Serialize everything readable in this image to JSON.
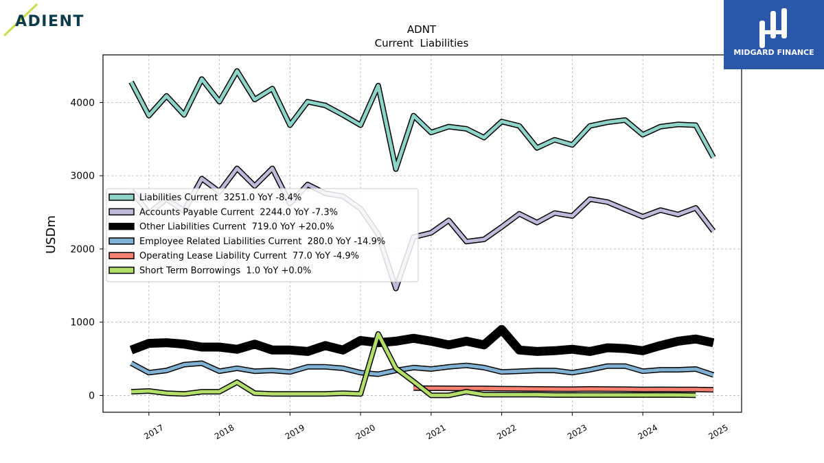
{
  "logos": {
    "left_text": "ADIENT",
    "right_text": "MIDGARD FINANCE",
    "left_color": "#0b3a4a",
    "left_accent": "#c8dc4a",
    "right_bg": "#2b58a8"
  },
  "chart_data": {
    "type": "line",
    "title": "ADNT",
    "subtitle": "Current  Liabilities",
    "xlabel": "",
    "ylabel": "USDm",
    "xlim": [
      2016.35,
      2025.4
    ],
    "ylim": [
      -230,
      4650
    ],
    "x_ticks": [
      2017,
      2018,
      2019,
      2020,
      2021,
      2022,
      2023,
      2024,
      2025
    ],
    "y_ticks": [
      0,
      1000,
      2000,
      3000,
      4000
    ],
    "grid": true,
    "legend_position": "center-left",
    "series": [
      {
        "name": "Liabilities Current  3251.0 YoY -8.4%",
        "color": "#8dd3c7",
        "width": 5,
        "x": [
          2016.75,
          2017.0,
          2017.25,
          2017.5,
          2017.75,
          2018.0,
          2018.25,
          2018.5,
          2018.75,
          2019.0,
          2019.25,
          2019.5,
          2019.75,
          2020.0,
          2020.25,
          2020.5,
          2020.75,
          2021.0,
          2021.25,
          2021.5,
          2021.75,
          2022.0,
          2022.25,
          2022.5,
          2022.75,
          2023.0,
          2023.25,
          2023.5,
          2023.75,
          2024.0,
          2024.25,
          2024.5,
          2024.75,
          2025.0
        ],
        "values": [
          4280,
          3820,
          4090,
          3830,
          4320,
          4010,
          4430,
          4040,
          4190,
          3690,
          4010,
          3960,
          3830,
          3690,
          4230,
          3090,
          3820,
          3590,
          3670,
          3640,
          3520,
          3740,
          3680,
          3380,
          3490,
          3420,
          3680,
          3730,
          3760,
          3560,
          3670,
          3700,
          3690,
          3251
        ]
      },
      {
        "name": "Accounts Payable Current  2244.0 YoY -7.3%",
        "color": "#bebada",
        "width": 5,
        "x": [
          2016.75,
          2017.0,
          2017.25,
          2017.5,
          2017.75,
          2018.0,
          2018.25,
          2018.5,
          2018.75,
          2019.0,
          2019.25,
          2019.5,
          2019.75,
          2020.0,
          2020.25,
          2020.5,
          2020.75,
          2021.0,
          2021.25,
          2021.5,
          2021.75,
          2022.0,
          2022.25,
          2022.5,
          2022.75,
          2023.0,
          2023.25,
          2023.5,
          2023.75,
          2024.0,
          2024.25,
          2024.5,
          2024.75,
          2025.0
        ],
        "values": [
          2800,
          2490,
          2680,
          2520,
          2960,
          2780,
          3100,
          2860,
          3100,
          2620,
          2880,
          2760,
          2720,
          2550,
          2200,
          1460,
          2160,
          2220,
          2390,
          2100,
          2130,
          2300,
          2480,
          2360,
          2490,
          2450,
          2680,
          2640,
          2540,
          2440,
          2530,
          2470,
          2560,
          2244
        ]
      },
      {
        "name": "Other Liabilities Current  719.0 YoY +20.0%",
        "color": "#000000",
        "width": 10,
        "x": [
          2016.75,
          2017.0,
          2017.25,
          2017.5,
          2017.75,
          2018.0,
          2018.25,
          2018.5,
          2018.75,
          2019.0,
          2019.25,
          2019.5,
          2019.75,
          2020.0,
          2020.25,
          2020.5,
          2020.75,
          2021.0,
          2021.25,
          2021.5,
          2021.75,
          2022.0,
          2022.25,
          2022.5,
          2022.75,
          2023.0,
          2023.25,
          2023.5,
          2023.75,
          2024.0,
          2024.25,
          2024.5,
          2024.75,
          2025.0
        ],
        "values": [
          620,
          710,
          720,
          700,
          660,
          660,
          630,
          700,
          620,
          620,
          600,
          680,
          620,
          750,
          720,
          740,
          780,
          740,
          690,
          740,
          690,
          900,
          620,
          600,
          610,
          630,
          600,
          650,
          640,
          610,
          680,
          740,
          770,
          719
        ]
      },
      {
        "name": "Employee Related Liabilities Current  280.0 YoY -14.9%",
        "color": "#80b1d3",
        "width": 5,
        "x": [
          2016.75,
          2017.0,
          2017.25,
          2017.5,
          2017.75,
          2018.0,
          2018.25,
          2018.5,
          2018.75,
          2019.0,
          2019.25,
          2019.5,
          2019.75,
          2020.0,
          2020.25,
          2020.5,
          2020.75,
          2021.0,
          2021.25,
          2021.5,
          2021.75,
          2022.0,
          2022.25,
          2022.5,
          2022.75,
          2023.0,
          2023.25,
          2023.5,
          2023.75,
          2024.0,
          2024.25,
          2024.5,
          2024.75,
          2025.0
        ],
        "values": [
          440,
          310,
          340,
          420,
          440,
          330,
          370,
          330,
          340,
          320,
          390,
          390,
          370,
          310,
          290,
          340,
          380,
          360,
          390,
          410,
          380,
          320,
          330,
          340,
          340,
          310,
          350,
          400,
          400,
          330,
          350,
          350,
          360,
          280
        ]
      },
      {
        "name": "Operating Lease Liability Current  77.0 YoY -4.9%",
        "color": "#fb8072",
        "width": 5,
        "x": [
          2020.75,
          2021.0,
          2021.25,
          2021.5,
          2021.75,
          2022.0,
          2022.25,
          2022.5,
          2022.75,
          2023.0,
          2023.25,
          2023.5,
          2023.75,
          2024.0,
          2024.25,
          2024.5,
          2024.75,
          2025.0
        ],
        "values": [
          100,
          98,
          97,
          96,
          95,
          92,
          90,
          88,
          86,
          85,
          88,
          87,
          85,
          82,
          83,
          82,
          81,
          77
        ]
      },
      {
        "name": "Short Term Borrowings  1.0 YoY +0.0%",
        "color": "#b3de69",
        "width": 5,
        "x": [
          2016.75,
          2017.0,
          2017.25,
          2017.5,
          2017.75,
          2018.0,
          2018.25,
          2018.5,
          2018.75,
          2019.0,
          2019.25,
          2019.5,
          2019.75,
          2020.0,
          2020.25,
          2020.5,
          2020.75,
          2021.0,
          2021.25,
          2021.5,
          2021.75,
          2022.0,
          2022.25,
          2022.5,
          2022.75,
          2023.0,
          2023.25,
          2023.5,
          2023.75,
          2024.0,
          2024.25,
          2024.5,
          2024.75
        ],
        "values": [
          50,
          60,
          30,
          20,
          50,
          50,
          180,
          30,
          20,
          20,
          20,
          20,
          30,
          20,
          840,
          370,
          190,
          0,
          0,
          50,
          10,
          10,
          10,
          10,
          5,
          5,
          5,
          5,
          5,
          5,
          5,
          5,
          1
        ]
      }
    ]
  }
}
